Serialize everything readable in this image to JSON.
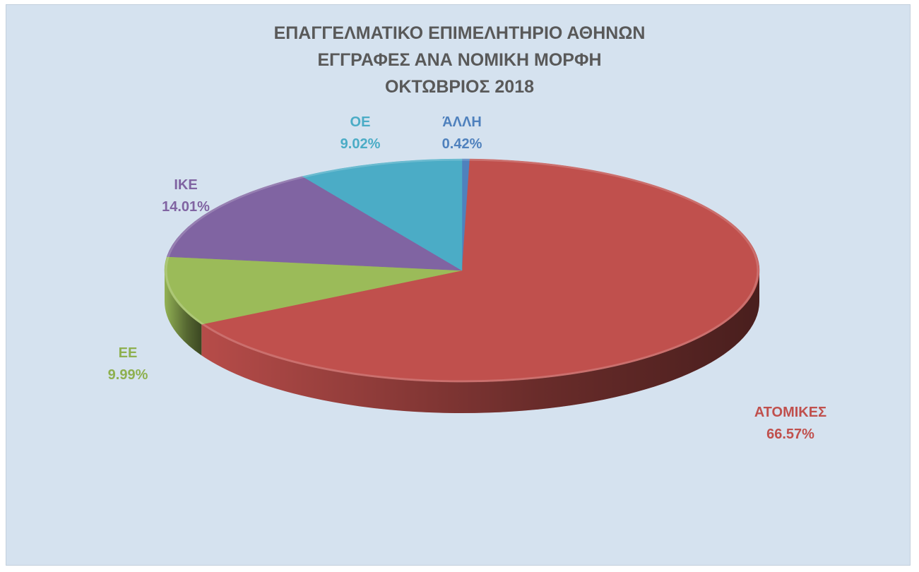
{
  "chart_data": {
    "type": "pie",
    "title": [
      "ΕΠΑΓΓΕΛΜΑΤΙΚΟ ΕΠΙΜΕΛΗΤΗΡΙΟ ΑΘΗΝΩΝ",
      "ΕΓΓΡΑΦΕΣ ΑΝΑ ΝΟΜΙΚΗ ΜΟΡΦΗ",
      "ΟΚΤΩΒΡΙΟΣ 2018"
    ],
    "slices": [
      {
        "label": "ΆΛΛΗ",
        "value": 0.42,
        "value_label": "0.42%",
        "color": "#4f81bd"
      },
      {
        "label": "ΑΤΟΜΙΚΕΣ",
        "value": 66.57,
        "value_label": "66.57%",
        "color": "#c0504d"
      },
      {
        "label": "ΕΕ",
        "value": 9.99,
        "value_label": "9.99%",
        "color": "#9bbb59"
      },
      {
        "label": "ΙΚΕ",
        "value": 14.01,
        "value_label": "14.01%",
        "color": "#8064a2"
      },
      {
        "label": "ΟΕ",
        "value": 9.02,
        "value_label": "9.02%",
        "color": "#4bacc6"
      }
    ],
    "style": "3d",
    "legend": "none"
  }
}
